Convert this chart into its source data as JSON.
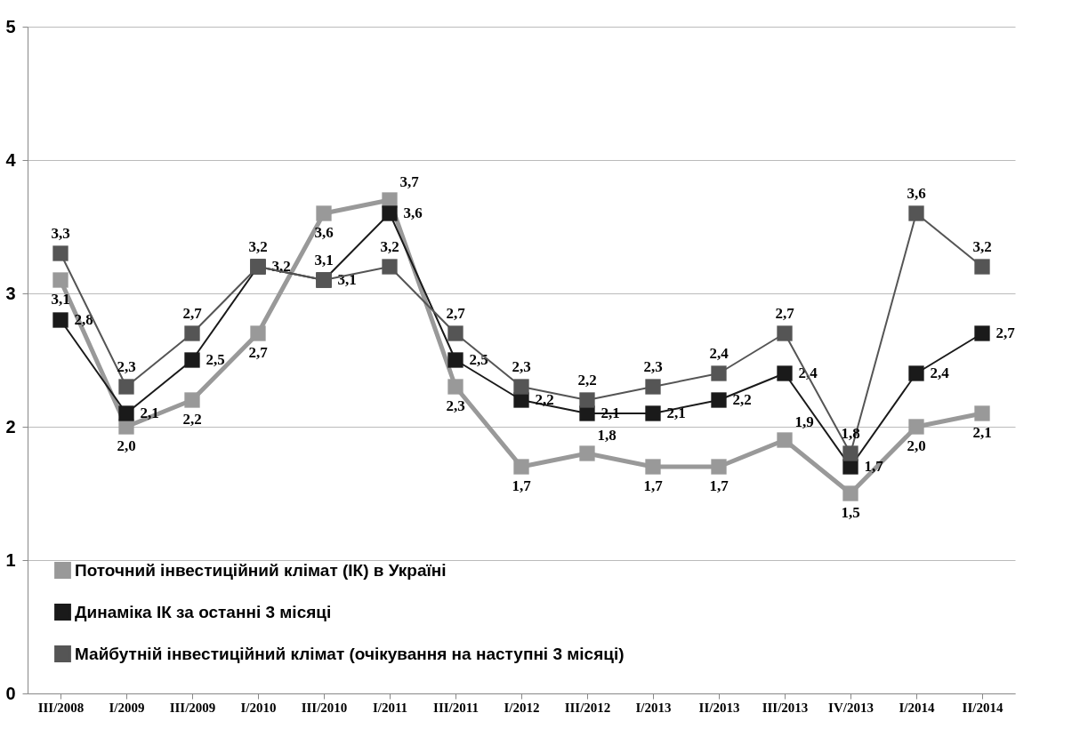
{
  "chart_data": {
    "type": "line",
    "categories": [
      "III/2008",
      "I/2009",
      "III/2009",
      "I/2010",
      "III/2010",
      "I/2011",
      "III/2011",
      "I/2012",
      "III/2012",
      "I/2013",
      "II/2013",
      "III/2013",
      "IV/2013",
      "I/2014",
      "II/2014"
    ],
    "ylim": [
      0,
      5
    ],
    "yticks": [
      0,
      1,
      2,
      3,
      4,
      5
    ],
    "grid": "y",
    "legend": "bottom left",
    "marker": "square",
    "line_style": "solid",
    "series": [
      {
        "name": "Поточний інвестиційний клімат (ІК) в Україні",
        "color": "#999999",
        "values": [
          3.1,
          2.0,
          2.2,
          2.7,
          3.6,
          3.7,
          2.3,
          1.7,
          1.8,
          1.7,
          1.7,
          1.9,
          1.5,
          2.0,
          2.1
        ],
        "value_labels": [
          "3,1",
          "2,0",
          "2,2",
          "2,7",
          "3,6",
          "3,7",
          "2,3",
          "1,7",
          "1,8",
          "1,7",
          "1,7",
          "1,9",
          "1,5",
          "2,0",
          "2,1"
        ]
      },
      {
        "name": "Динаміка ІК за останні 3 місяці",
        "color": "#1a1a1a",
        "values": [
          2.8,
          2.1,
          2.5,
          3.2,
          3.1,
          3.6,
          2.5,
          2.2,
          2.1,
          2.1,
          2.2,
          2.4,
          1.7,
          2.4,
          2.7
        ],
        "value_labels": [
          "2,8",
          "2,1",
          "2,5",
          "3,2",
          "3,1",
          "3,6",
          "2,5",
          "2,2",
          "2,1",
          "2,1",
          "2,2",
          "2,4",
          "1,7",
          "2,4",
          "2,7"
        ]
      },
      {
        "name": "Майбутній інвестиційний клімат (очікування на наступні 3 місяці)",
        "color": "#555555",
        "values": [
          3.3,
          2.3,
          2.7,
          3.2,
          3.1,
          3.2,
          2.7,
          2.3,
          2.2,
          2.3,
          2.4,
          2.7,
          1.8,
          3.6,
          3.2
        ],
        "value_labels": [
          "3,3",
          "2,3",
          "2,7",
          "3,2",
          "3,1",
          "3,2",
          "2,7",
          "2,3",
          "2,2",
          "2,3",
          "2,4",
          "2,7",
          "1,8",
          "3,6",
          "3,2"
        ]
      }
    ]
  }
}
